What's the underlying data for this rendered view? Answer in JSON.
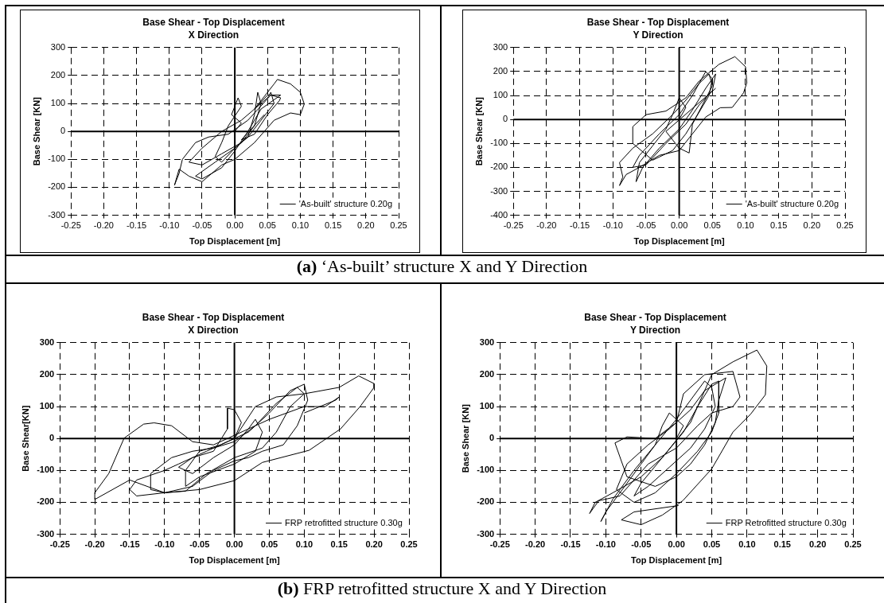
{
  "chart_data": [
    {
      "type": "line",
      "title": "Base Shear - Top Displacement",
      "subtitle": "X Direction",
      "xlabel": "Top Displacement [m]",
      "ylabel": "Base Shear [KN]",
      "xlim": [
        -0.25,
        0.25
      ],
      "ylim": [
        -300,
        300
      ],
      "xticks": [
        -0.25,
        {
          "value": -0.2,
          "label": "-0.20"
        },
        -0.15,
        {
          "value": -0.1,
          "label": "-0.10"
        },
        -0.05,
        {
          "value": 0,
          "label": "0.00"
        },
        0.05,
        {
          "value": 0.1,
          "label": "0.10"
        },
        0.15,
        {
          "value": 0.2,
          "label": "0.20"
        },
        0.25
      ],
      "yticks": [
        -300,
        -200,
        -100,
        0,
        100,
        200,
        300
      ],
      "grid": true,
      "legend": "bottom right",
      "marker": "none",
      "line_style": "solid",
      "annotations": [
        "(a) ‘As-built’ structure X and Y Direction"
      ],
      "series": [
        {
          "name": "'As-built' structure 0.20g",
          "color": "#000000",
          "x": [
            0,
            0.01,
            -0.005,
            0.005,
            0.01,
            -0.01,
            -0.02,
            -0.03,
            -0.02,
            0,
            0.02,
            0.03,
            0.035,
            0.04,
            0.03,
            0.01,
            -0.02,
            -0.05,
            -0.07,
            -0.05,
            -0.02,
            0.01,
            0.03,
            0.05,
            0.055,
            0.06,
            0.04,
            0.02,
            0,
            -0.03,
            -0.06,
            -0.05,
            -0.02,
            0,
            0.02,
            0.04,
            0.07,
            0.05,
            0.03,
            0.06,
            0.065,
            0.085,
            0.1,
            0.106,
            0.1,
            0.085,
            0.06,
            0.03,
            0,
            -0.02,
            -0.05,
            -0.07,
            -0.085,
            -0.092,
            -0.085,
            -0.08,
            -0.06,
            -0.04,
            -0.01,
            0.02,
            0.055,
            0.07,
            0.068,
            0.05,
            0.03,
            0.01,
            0.045
          ],
          "values": [
            0,
            30,
            60,
            120,
            90,
            20,
            -40,
            -90,
            -110,
            -60,
            -20,
            60,
            140,
            100,
            20,
            -40,
            -80,
            -120,
            -110,
            -60,
            0,
            40,
            80,
            120,
            140,
            100,
            40,
            -20,
            -60,
            -110,
            -160,
            -170,
            -130,
            -70,
            0,
            80,
            130,
            130,
            80,
            170,
            186,
            170,
            140,
            98,
            60,
            66,
            40,
            -40,
            -100,
            -120,
            -180,
            -160,
            -135,
            -192,
            -150,
            -100,
            -40,
            -20,
            -10,
            40,
            130,
            120,
            110,
            60,
            -10,
            -30,
            60
          ]
        }
      ]
    },
    {
      "type": "line",
      "title": "Base Shear - Top Displacement",
      "subtitle": "Y Direction",
      "xlabel": "Top Displacement [m]",
      "ylabel": "Base Shear [KN]",
      "xlim": [
        -0.25,
        0.25
      ],
      "ylim": [
        -400,
        300
      ],
      "xticks": [
        -0.25,
        {
          "value": -0.2,
          "label": "-0.20"
        },
        -0.15,
        {
          "value": -0.1,
          "label": "-0.10"
        },
        -0.05,
        {
          "value": 0,
          "label": "0.00"
        },
        0.05,
        {
          "value": 0.1,
          "label": "0.10"
        },
        0.15,
        {
          "value": 0.2,
          "label": "0.20"
        },
        0.25
      ],
      "yticks": [
        -400,
        -300,
        -200,
        -100,
        0,
        100,
        200,
        300
      ],
      "grid": true,
      "legend": "bottom right",
      "marker": "none",
      "line_style": "solid",
      "series": [
        {
          "name": "'As-built' structure 0.20g",
          "color": "#000000",
          "x": [
            0,
            0.01,
            0,
            -0.01,
            -0.02,
            -0.04,
            -0.06,
            -0.065,
            -0.055,
            -0.03,
            0,
            0.02,
            0.04,
            0.055,
            0.05,
            0.03,
            0.01,
            -0.02,
            -0.05,
            -0.07,
            -0.06,
            -0.03,
            0,
            0.02,
            0.04,
            0.05,
            0.045,
            0.03,
            0.01,
            -0.01,
            -0.04,
            -0.07,
            -0.07,
            -0.05,
            -0.02,
            0.01,
            0.03,
            0.06,
            0.084,
            0.1,
            0.102,
            0.097,
            0.08,
            0.062,
            0.04,
            0.02,
            0,
            -0.03,
            -0.06,
            -0.08,
            -0.09,
            -0.085,
            -0.09,
            -0.07,
            -0.04,
            -0.01,
            0.01,
            0.03,
            0.045,
            0.05,
            0.02,
            0.015,
            0,
            -0.02,
            0.055
          ],
          "values": [
            0,
            50,
            90,
            20,
            -40,
            -110,
            -180,
            -260,
            -200,
            -120,
            -40,
            40,
            130,
            190,
            120,
            60,
            -20,
            -100,
            -190,
            -200,
            -150,
            -60,
            20,
            100,
            200,
            170,
            100,
            30,
            -60,
            -130,
            -170,
            -100,
            -30,
            20,
            35,
            90,
            160,
            230,
            262,
            220,
            153,
            111,
            50,
            49,
            10,
            -60,
            -130,
            -150,
            -200,
            -230,
            -276,
            -240,
            -180,
            -120,
            -60,
            20,
            80,
            150,
            190,
            140,
            -20,
            -140,
            -120,
            -50,
            130
          ]
        }
      ]
    },
    {
      "type": "line",
      "title": "Base Shear - Top Displacement",
      "subtitle": "X Direction",
      "xlabel": "Top Displacement [m]",
      "ylabel": "Base Shear[KN]",
      "xlim": [
        -0.25,
        0.25
      ],
      "ylim": [
        -300,
        300
      ],
      "xticks": [
        -0.25,
        {
          "value": -0.2,
          "label": "-0.20"
        },
        -0.15,
        {
          "value": -0.1,
          "label": "-0.10"
        },
        -0.05,
        {
          "value": 0,
          "label": "0.00"
        },
        0.05,
        {
          "value": 0.1,
          "label": "0.10"
        },
        0.15,
        {
          "value": 0.2,
          "label": "0.20"
        },
        0.25
      ],
      "yticks": [
        -300,
        -200,
        -100,
        0,
        100,
        200,
        300
      ],
      "grid": true,
      "legend": "bottom right",
      "marker": "none",
      "line_style": "solid",
      "annotations": [
        "(b) FRP retrofitted structure X and Y Direction"
      ],
      "series": [
        {
          "name": "FRP retrofitted structure 0.30g",
          "color": "#000000",
          "x": [
            0,
            0.01,
            0,
            -0.01,
            -0.01,
            -0.03,
            -0.06,
            -0.08,
            -0.06,
            -0.03,
            0,
            0.02,
            0.03,
            0.04,
            0.03,
            0,
            -0.05,
            -0.07,
            -0.07,
            -0.05,
            -0.02,
            0.02,
            0.05,
            0.08,
            0.1,
            0.105,
            0.09,
            0.07,
            0.04,
            0.02,
            0,
            -0.03,
            -0.06,
            -0.1,
            -0.12,
            -0.12,
            -0.09,
            -0.06,
            -0.03,
            0,
            0.03,
            0.06,
            0.09,
            0.1,
            0.08,
            0.06,
            0.04,
            0,
            -0.04,
            -0.07,
            -0.1,
            -0.14,
            -0.15,
            -0.14,
            -0.1,
            -0.08,
            -0.04,
            0,
            0.03,
            0.06,
            0.1,
            0.15,
            0.178,
            0.2,
            0.2,
            0.18,
            0.152,
            0.107,
            0.04,
            0,
            -0.05,
            -0.1,
            -0.15,
            -0.2,
            -0.2,
            -0.18,
            -0.158,
            -0.13,
            -0.115,
            -0.09,
            -0.06,
            -0.03,
            0,
            0.05,
            0.1,
            0.13,
            0.15,
            0.145,
            0.1
          ],
          "values": [
            0,
            50,
            90,
            95,
            30,
            -40,
            -60,
            -90,
            -110,
            -60,
            -20,
            30,
            60,
            20,
            -40,
            -80,
            -120,
            -150,
            -100,
            -40,
            -20,
            20,
            80,
            150,
            170,
            120,
            40,
            -20,
            -40,
            -60,
            -70,
            -100,
            -150,
            -170,
            -160,
            -110,
            -60,
            -40,
            -30,
            -10,
            40,
            110,
            160,
            140,
            100,
            20,
            -30,
            -60,
            -110,
            -165,
            -170,
            -180,
            -160,
            -130,
            -100,
            -80,
            -40,
            0,
            100,
            130,
            140,
            160,
            196,
            172,
            160,
            100,
            30,
            -37,
            -75,
            -132,
            -160,
            -170,
            -130,
            -191,
            -170,
            -110,
            1,
            45,
            49,
            40,
            -10,
            -20,
            10,
            60,
            100,
            100,
            130,
            120,
            80
          ]
        }
      ]
    },
    {
      "type": "line",
      "title": "Base Shear - Top Displacement",
      "subtitle": "Y Direction",
      "xlabel": "Top Displacement [m]",
      "ylabel": "Base Shear [KN]",
      "xlim": [
        -0.25,
        0.25
      ],
      "ylim": [
        -300,
        300
      ],
      "xticks": [
        -0.25,
        {
          "value": -0.2,
          "label": "-0.20"
        },
        -0.15,
        {
          "value": -0.1,
          "label": "-0.10"
        },
        -0.05,
        {
          "value": 0,
          "label": "0.00"
        },
        0.05,
        {
          "value": 0.1,
          "label": "0.10"
        },
        0.15,
        {
          "value": 0.2,
          "label": "0.20"
        },
        0.25
      ],
      "yticks": [
        -300,
        -200,
        -100,
        0,
        100,
        200,
        300
      ],
      "grid": true,
      "legend": "bottom right",
      "marker": "none",
      "line_style": "solid",
      "series": [
        {
          "name": "FRP Retrofitted structure 0.30g",
          "color": "#000000",
          "x": [
            0,
            0.01,
            -0.01,
            -0.02,
            -0.03,
            -0.05,
            -0.07,
            -0.1,
            -0.107,
            -0.09,
            -0.06,
            -0.03,
            0,
            0.02,
            0.04,
            0.05,
            0.055,
            0.04,
            0.02,
            -0.01,
            -0.04,
            -0.06,
            -0.05,
            -0.02,
            0.01,
            0.03,
            0.05,
            0.06,
            0.06,
            0.05,
            0.03,
            0,
            -0.03,
            -0.06,
            -0.085,
            -0.07,
            -0.04,
            -0.01,
            0.02,
            0.04,
            0.07,
            0.06,
            0.055,
            0.04,
            0.02,
            0,
            -0.03,
            -0.07,
            -0.087,
            -0.07,
            -0.03,
            0,
            0.01,
            0.04,
            0.08,
            0.09,
            0.08,
            0.05,
            0.03,
            0,
            -0.04,
            -0.08,
            -0.11,
            -0.123,
            -0.115,
            -0.09,
            -0.05,
            -0.02,
            0.02,
            0.05,
            0.08,
            0.114,
            0.128,
            0.126,
            0.105,
            0.08,
            0.05,
            0.009,
            -0.02,
            -0.05,
            -0.078,
            -0.06,
            0.003
          ],
          "values": [
            0,
            40,
            80,
            40,
            -20,
            -80,
            -140,
            -230,
            -260,
            -190,
            -100,
            -20,
            60,
            120,
            180,
            160,
            100,
            30,
            -30,
            -90,
            -150,
            -180,
            -140,
            -60,
            20,
            100,
            170,
            180,
            80,
            20,
            -40,
            -110,
            -170,
            -200,
            -160,
            -80,
            -20,
            30,
            90,
            150,
            190,
            120,
            50,
            -20,
            -80,
            -120,
            -150,
            -120,
            -14,
            5,
            0,
            50,
            140,
            200,
            210,
            130,
            100,
            80,
            40,
            -30,
            -80,
            -180,
            -195,
            -235,
            -200,
            -170,
            -120,
            -60,
            50,
            200,
            240,
            277,
            227,
            137,
            76,
            20,
            -95,
            -195,
            -240,
            -270,
            -255,
            -230,
            -210
          ]
        }
      ]
    }
  ]
}
